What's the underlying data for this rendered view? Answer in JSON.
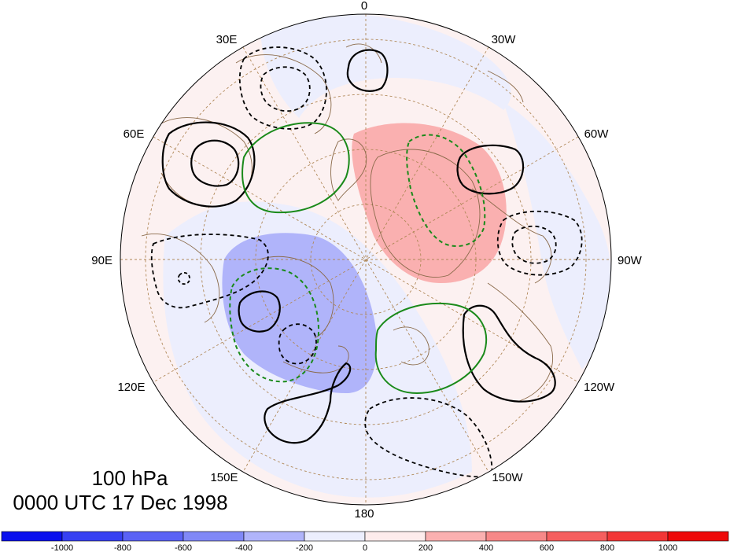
{
  "map": {
    "level_label": "100 hPa",
    "time_label": "0000 UTC 17 Dec 1998",
    "longitude_labels": [
      "0",
      "30W",
      "60W",
      "90W",
      "120W",
      "150W",
      "180",
      "150E",
      "120E",
      "90E",
      "60E",
      "30E"
    ],
    "colorbar": {
      "tick_labels": [
        "-1000",
        "-800",
        "-600",
        "-400",
        "-200",
        "0",
        "200",
        "400",
        "600",
        "800",
        "1000"
      ],
      "colors": [
        "#0a10ee",
        "#3640f2",
        "#5a62f5",
        "#8088f7",
        "#b0b4fa",
        "#eceefd",
        "#fdecec",
        "#fab0b0",
        "#f78888",
        "#f55e5e",
        "#f23636",
        "#ee0a0a"
      ]
    }
  }
}
